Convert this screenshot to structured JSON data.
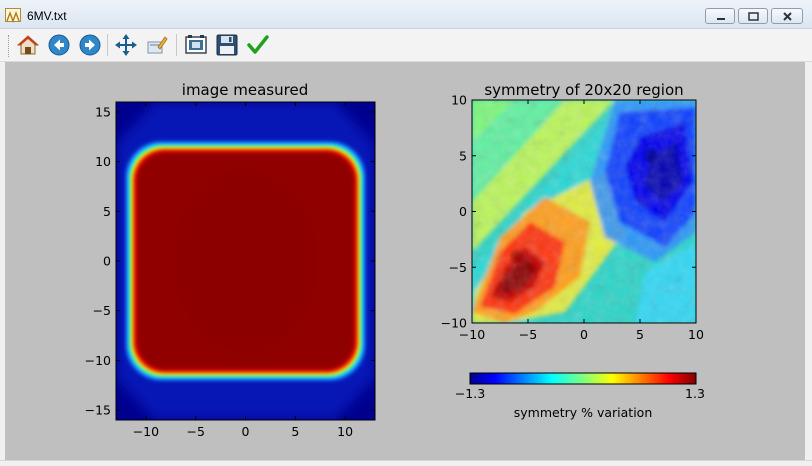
{
  "window": {
    "title": "6MV.txt"
  },
  "toolbar": {
    "buttons": [
      {
        "name": "home-button",
        "icon": "home-icon"
      },
      {
        "name": "back-button",
        "icon": "back-arrow-icon"
      },
      {
        "name": "forward-button",
        "icon": "forward-arrow-icon"
      },
      {
        "name": "pan-button",
        "icon": "pan-arrows-icon"
      },
      {
        "name": "edit-button",
        "icon": "edit-icon"
      },
      {
        "name": "configure-subplots-button",
        "icon": "subplots-icon"
      },
      {
        "name": "save-button",
        "icon": "floppy-disk-icon"
      },
      {
        "name": "apply-button",
        "icon": "checkmark-icon"
      }
    ]
  },
  "colors": {
    "accent_red": "#8b0000",
    "field_blue": "#00008b",
    "canvas_bg": "#bfbfbf"
  },
  "chart_data": [
    {
      "type": "heatmap",
      "title": "image measured",
      "xlabel": "",
      "ylabel": "",
      "xlim": [
        -13,
        13
      ],
      "ylim": [
        -16,
        16
      ],
      "xticks": [
        -10,
        -5,
        0,
        5,
        10
      ],
      "yticks": [
        -15,
        -10,
        -5,
        0,
        5,
        10,
        15
      ],
      "xtick_labels": [
        "−10",
        "−5",
        "0",
        "5",
        "10"
      ],
      "ytick_labels": [
        "−15",
        "−10",
        "−5",
        "0",
        "5",
        "10",
        "15"
      ],
      "colormap": "jet",
      "field": {
        "x_half_width": 12,
        "y_half_height": 12,
        "corner_radius": 2.5,
        "inner_value": "max",
        "outer_value": "min"
      }
    },
    {
      "type": "heatmap",
      "title": "symmetry of 20x20 region",
      "xlabel": "",
      "ylabel": "",
      "xlim": [
        -10,
        10
      ],
      "ylim": [
        -10,
        10
      ],
      "xticks": [
        -10,
        -5,
        0,
        5,
        10
      ],
      "yticks": [
        -10,
        -5,
        0,
        5,
        10
      ],
      "xtick_labels": [
        "−10",
        "−5",
        "0",
        "5",
        "10"
      ],
      "ytick_labels": [
        "−10",
        "−5",
        "0",
        "5",
        "10"
      ],
      "colormap": "jet",
      "hot_spot": {
        "x": -6,
        "y": -4,
        "value": 1.3
      },
      "cold_spot": {
        "x": 6,
        "y": 5,
        "value": -1.3
      },
      "colorbar": {
        "min_label": "−1.3",
        "max_label": "1.3",
        "label": "symmetry % variation",
        "vmin": -1.3,
        "vmax": 1.3,
        "orientation": "horizontal"
      }
    }
  ]
}
